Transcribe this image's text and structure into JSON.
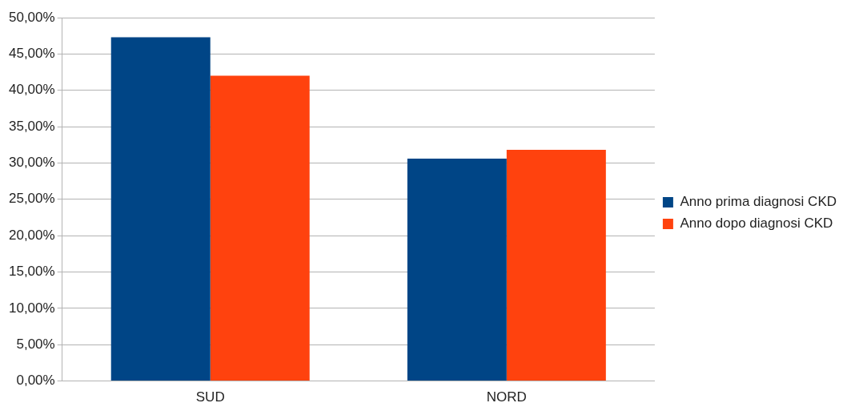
{
  "chart_data": {
    "type": "bar",
    "categories": [
      "SUD",
      "NORD"
    ],
    "series": [
      {
        "name": "Anno prima diagnosi CKD",
        "color": "#004586",
        "values": [
          47.3,
          30.6
        ]
      },
      {
        "name": "Anno dopo diagnosi CKD",
        "color": "#ff420e",
        "values": [
          42.0,
          31.8
        ]
      }
    ],
    "ylim": [
      0,
      50
    ],
    "yticks": [
      {
        "value": 0,
        "label": "0,00%"
      },
      {
        "value": 5,
        "label": "5,00%"
      },
      {
        "value": 10,
        "label": "10,00%"
      },
      {
        "value": 15,
        "label": "15,00%"
      },
      {
        "value": 20,
        "label": "20,00%"
      },
      {
        "value": 25,
        "label": "25,00%"
      },
      {
        "value": 30,
        "label": "30,00%"
      },
      {
        "value": 35,
        "label": "35,00%"
      },
      {
        "value": 40,
        "label": "40,00%"
      },
      {
        "value": 45,
        "label": "45,00%"
      },
      {
        "value": 50,
        "label": "50,00%"
      }
    ],
    "grid": "y",
    "legend": "right"
  }
}
